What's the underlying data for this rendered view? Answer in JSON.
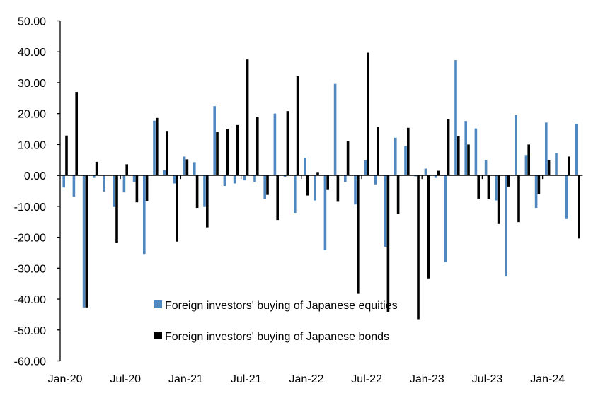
{
  "chart_data": {
    "type": "bar",
    "title": "",
    "xlabel": "",
    "ylabel": "",
    "ylim": [
      -60,
      50
    ],
    "yticks": [
      "50.00",
      "40.00",
      "30.00",
      "20.00",
      "10.00",
      "0.00",
      "-10.00",
      "-20.00",
      "-30.00",
      "-40.00",
      "-50.00",
      "-60.00"
    ],
    "grid": false,
    "legend_position": "bottom-center-inside",
    "categories": [
      "Jan-20",
      "Feb-20",
      "Mar-20",
      "Apr-20",
      "May-20",
      "Jun-20",
      "Jul-20",
      "Aug-20",
      "Sep-20",
      "Oct-20",
      "Nov-20",
      "Dec-20",
      "Jan-21",
      "Feb-21",
      "Mar-21",
      "Apr-21",
      "May-21",
      "Jun-21",
      "Jul-21",
      "Aug-21",
      "Sep-21",
      "Oct-21",
      "Nov-21",
      "Dec-21",
      "Jan-22",
      "Feb-22",
      "Mar-22",
      "Apr-22",
      "May-22",
      "Jun-22",
      "Jul-22",
      "Aug-22",
      "Sep-22",
      "Oct-22",
      "Nov-22",
      "Dec-22",
      "Jan-23",
      "Feb-23",
      "Mar-23",
      "Apr-23",
      "May-23",
      "Jun-23",
      "Jul-23",
      "Aug-23",
      "Sep-23",
      "Oct-23",
      "Nov-23",
      "Dec-23",
      "Jan-24",
      "Feb-24",
      "Mar-24",
      "Apr-24"
    ],
    "xtick_labels": [
      "Jan-20",
      "Jul-20",
      "Jan-21",
      "Jul-21",
      "Jan-22",
      "Jul-22",
      "Jan-23",
      "Jul-23",
      "Jan-24"
    ],
    "series": [
      {
        "name": "Foreign investors' buying of Japanese equities",
        "color": "#4f88c0",
        "values": [
          -3.9,
          -6.9,
          -42.7,
          -0.8,
          -5.2,
          -10.2,
          -5.5,
          -2.1,
          -25.4,
          17.7,
          1.7,
          -2.6,
          6.1,
          4.3,
          -10.2,
          22.4,
          -3.4,
          -2.6,
          -1.6,
          -2.1,
          -7.6,
          20.0,
          -0.5,
          -12.1,
          5.7,
          -8.1,
          -24.2,
          29.6,
          -2.1,
          -9.4,
          4.9,
          -2.9,
          -23.1,
          12.2,
          9.5,
          -0.3,
          2.2,
          -0.8,
          -28.1,
          37.3,
          17.6,
          15.2,
          5.0,
          -8.1,
          -32.7,
          19.5,
          6.6,
          -10.5,
          17.1,
          7.3,
          -14.1,
          16.7
        ]
      },
      {
        "name": "Foreign investors' buying of Japanese bonds",
        "color": "#000000",
        "values": [
          12.9,
          27.0,
          -42.7,
          4.4,
          0,
          -21.7,
          3.6,
          -8.7,
          -8.2,
          18.6,
          14.4,
          -21.4,
          5.2,
          -10.5,
          -16.8,
          14.1,
          15.1,
          16.3,
          37.5,
          19.0,
          -6.3,
          -14.4,
          20.8,
          32.1,
          -6.5,
          1.1,
          -4.7,
          -8.3,
          11.0,
          -38.3,
          39.7,
          15.7,
          -44.1,
          -12.5,
          15.4,
          -46.5,
          -33.3,
          1.5,
          18.3,
          12.7,
          10.0,
          -7.5,
          -7.7,
          -15.7,
          -3.6,
          -15.1,
          10.0,
          -6.1,
          4.9,
          0,
          6.1,
          -20.4
        ]
      }
    ]
  }
}
